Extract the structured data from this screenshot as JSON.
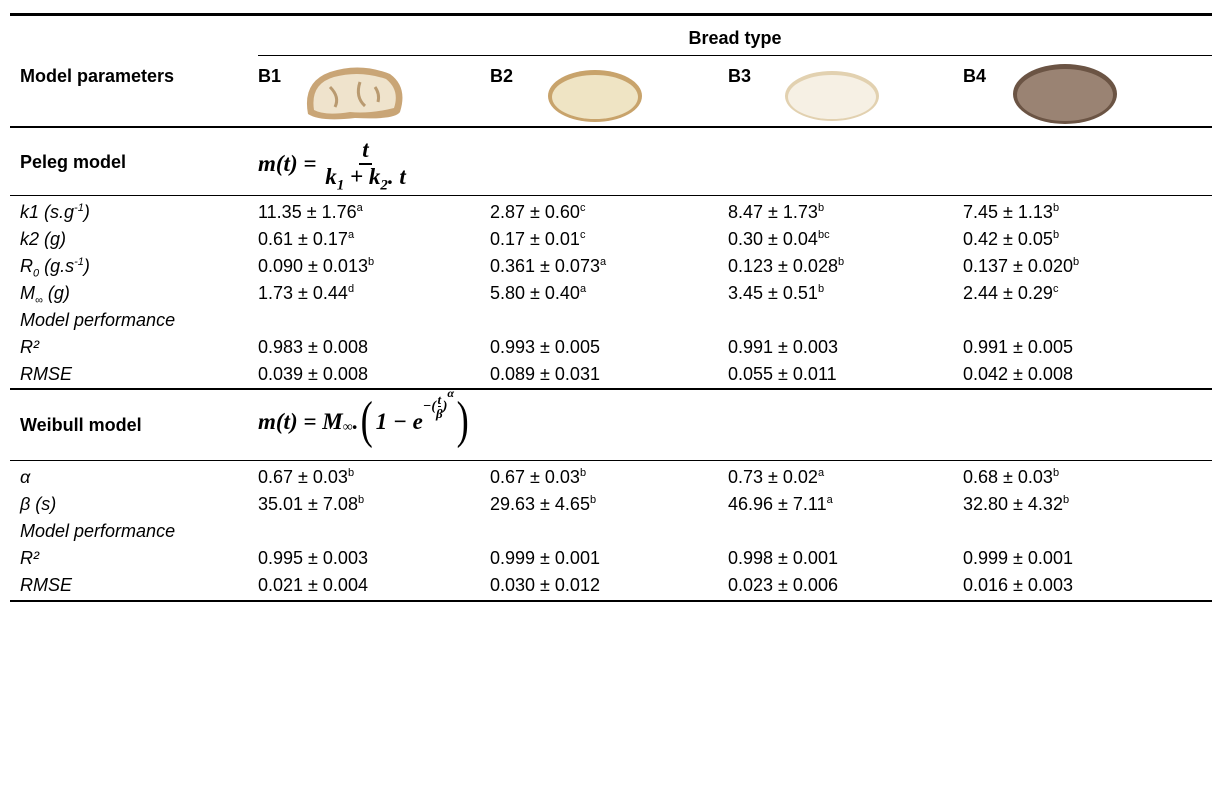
{
  "header": {
    "group_title": "Bread type",
    "row_header": "Model parameters",
    "columns": [
      "B1",
      "B2",
      "B3",
      "B4"
    ]
  },
  "sections": [
    {
      "title": "Peleg model",
      "formula": {
        "lhs": "m(t) =",
        "numerator": "t",
        "denominator": [
          "k",
          "1",
          " + k",
          "2",
          ". t"
        ]
      },
      "rows": [
        {
          "label": [
            {
              "t": "k1 (s.g"
            },
            {
              "sup": "-1"
            },
            {
              "t": ")"
            }
          ],
          "cells": [
            {
              "text": "11.35 ± 1.76",
              "sup": "a"
            },
            {
              "text": "2.87 ± 0.60",
              "sup": "c"
            },
            {
              "text": "8.47 ± 1.73",
              "sup": "b"
            },
            {
              "text": "7.45 ± 1.13",
              "sup": "b"
            }
          ]
        },
        {
          "label": [
            {
              "t": "k2 (g)"
            }
          ],
          "cells": [
            {
              "text": "0.61 ± 0.17",
              "sup": "a"
            },
            {
              "text": "0.17 ± 0.01",
              "sup": "c"
            },
            {
              "text": "0.30 ± 0.04",
              "sup": "bc"
            },
            {
              "text": "0.42 ± 0.05",
              "sup": "b"
            }
          ]
        },
        {
          "label": [
            {
              "t": "R"
            },
            {
              "sub": "0"
            },
            {
              "t": " (g.s"
            },
            {
              "sup": "-1"
            },
            {
              "t": ")"
            }
          ],
          "cells": [
            {
              "text": "0.090 ± 0.013",
              "sup": "b"
            },
            {
              "text": "0.361 ± 0.073",
              "sup": "a"
            },
            {
              "text": "0.123 ± 0.028",
              "sup": "b"
            },
            {
              "text": "0.137 ± 0.020",
              "sup": "b"
            }
          ]
        },
        {
          "label": [
            {
              "t": "M"
            },
            {
              "sub": "∞"
            },
            {
              "t": " (g)"
            }
          ],
          "cells": [
            {
              "text": "1.73 ± 0.44",
              "sup": "d"
            },
            {
              "text": "5.80 ± 0.40",
              "sup": "a"
            },
            {
              "text": "3.45 ± 0.51",
              "sup": "b"
            },
            {
              "text": "2.44 ± 0.29",
              "sup": "c"
            }
          ]
        },
        {
          "label": [
            {
              "t": "Model performance"
            }
          ]
        },
        {
          "label": [
            {
              "t": "R²"
            }
          ],
          "cells": [
            {
              "text": "0.983 ± 0.008"
            },
            {
              "text": "0.993 ± 0.005"
            },
            {
              "text": "0.991 ± 0.003"
            },
            {
              "text": "0.991 ± 0.005"
            }
          ]
        },
        {
          "label": [
            {
              "t": "RMSE"
            }
          ],
          "cells": [
            {
              "text": "0.039 ± 0.008"
            },
            {
              "text": "0.089 ± 0.031"
            },
            {
              "text": "0.055 ± 0.011"
            },
            {
              "text": "0.042 ± 0.008"
            }
          ]
        }
      ]
    },
    {
      "title": "Weibull model",
      "formula": {
        "lhs": "m(t) = M",
        "lhs_sub": "∞",
        "dot": ".",
        "open": "(",
        "one_minus": "1 − e",
        "exp_open": "−(",
        "exp_num": "t",
        "exp_den": "β",
        "exp_close": ")",
        "exp_power": "α",
        "close": ")"
      },
      "rows": [
        {
          "label": [
            {
              "t": "α"
            }
          ],
          "cells": [
            {
              "text": "0.67 ± 0.03",
              "sup": "b"
            },
            {
              "text": "0.67 ± 0.03",
              "sup": "b"
            },
            {
              "text": "0.73 ± 0.02",
              "sup": "a"
            },
            {
              "text": "0.68 ± 0.03",
              "sup": "b"
            }
          ]
        },
        {
          "label": [
            {
              "t": "β (s)"
            }
          ],
          "cells": [
            {
              "text": "35.01 ± 7.08",
              "sup": "b"
            },
            {
              "text": "29.63 ± 4.65",
              "sup": "b"
            },
            {
              "text": "46.96 ± 7.11",
              "sup": "a"
            },
            {
              "text": "32.80 ± 4.32",
              "sup": "b"
            }
          ]
        },
        {
          "label": [
            {
              "t": "Model performance"
            }
          ]
        },
        {
          "label": [
            {
              "t": "R²"
            }
          ],
          "cells": [
            {
              "text": "0.995 ± 0.003"
            },
            {
              "text": "0.999 ± 0.001"
            },
            {
              "text": "0.998 ± 0.001"
            },
            {
              "text": "0.999 ± 0.001"
            }
          ]
        },
        {
          "label": [
            {
              "t": "RMSE"
            }
          ],
          "cells": [
            {
              "text": "0.021 ± 0.004"
            },
            {
              "text": "0.030 ± 0.012"
            },
            {
              "text": "0.023 ± 0.006"
            },
            {
              "text": "0.016 ± 0.003"
            }
          ]
        }
      ]
    }
  ]
}
